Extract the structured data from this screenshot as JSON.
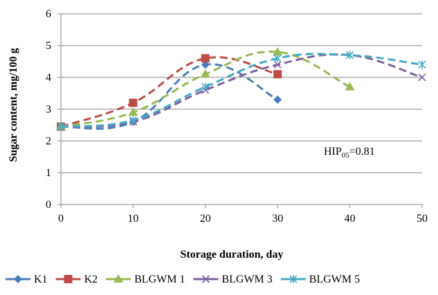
{
  "chart_data": {
    "type": "line",
    "xlabel": "Storage duration, day",
    "ylabel": "Sugar content, mg/100 g",
    "xlim": [
      0,
      50
    ],
    "ylim": [
      0,
      6
    ],
    "x_ticks": [
      "0",
      "10",
      "20",
      "30",
      "40",
      "50"
    ],
    "y_ticks": [
      "0",
      "1",
      "2",
      "3",
      "4",
      "5",
      "6"
    ],
    "grid": "horizontal",
    "legend_position": "bottom",
    "annotation": {
      "base": "HIP",
      "subscript": "05",
      "value": "=0.81"
    },
    "series": [
      {
        "name": "K1",
        "color": "#4A7EBB",
        "marker": "diamond",
        "smooth": true,
        "points": [
          [
            0,
            2.45
          ],
          [
            10,
            2.6
          ],
          [
            20,
            4.4
          ],
          [
            30,
            3.3
          ]
        ]
      },
      {
        "name": "K2",
        "color": "#BE4B48",
        "marker": "square",
        "smooth": true,
        "points": [
          [
            0,
            2.45
          ],
          [
            10,
            3.2
          ],
          [
            20,
            4.6
          ],
          [
            30,
            4.1
          ]
        ]
      },
      {
        "name": "BLGWM 1",
        "color": "#98B954",
        "marker": "triangle",
        "smooth": true,
        "points": [
          [
            0,
            2.45
          ],
          [
            10,
            2.9
          ],
          [
            20,
            4.1
          ],
          [
            30,
            4.8
          ],
          [
            40,
            3.7
          ]
        ]
      },
      {
        "name": "BLGWM 3",
        "color": "#7D60A0",
        "marker": "x",
        "smooth": true,
        "points": [
          [
            0,
            2.45
          ],
          [
            10,
            2.6
          ],
          [
            20,
            3.6
          ],
          [
            30,
            4.4
          ],
          [
            40,
            4.7
          ],
          [
            50,
            4.0
          ]
        ]
      },
      {
        "name": "BLGWM 5",
        "color": "#46AAC5",
        "marker": "star",
        "smooth": true,
        "points": [
          [
            0,
            2.45
          ],
          [
            10,
            2.65
          ],
          [
            20,
            3.7
          ],
          [
            30,
            4.6
          ],
          [
            40,
            4.7
          ],
          [
            50,
            4.4
          ]
        ]
      }
    ]
  }
}
